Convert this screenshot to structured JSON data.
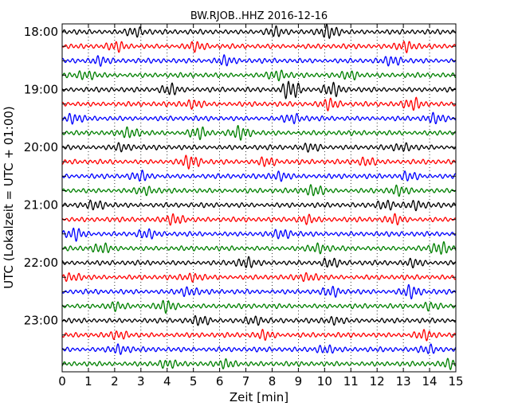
{
  "chart_data": {
    "type": "line",
    "title": "BW.RJOB..HHZ 2016-12-16",
    "xlabel": "Zeit  [min]",
    "ylabel": "UTC (Lokalzeit = UTC + 01:00)",
    "xlim": [
      0,
      15
    ],
    "x_ticks": [
      "0",
      "1",
      "2",
      "3",
      "4",
      "5",
      "6",
      "7",
      "8",
      "9",
      "10",
      "11",
      "12",
      "13",
      "14",
      "15"
    ],
    "y_tick_labels": [
      "18:00",
      "19:00",
      "20:00",
      "21:00",
      "22:00",
      "23:00"
    ],
    "grid": "vertical dotted at each minute",
    "trace_colors": [
      "#000000",
      "#ff0000",
      "#0000ff",
      "#008000"
    ],
    "series": [
      {
        "start": "18:00",
        "color": "#000000",
        "bursts": [
          [
            2.8,
            0.7
          ],
          [
            8.1,
            0.6
          ],
          [
            10.2,
            1.0
          ]
        ]
      },
      {
        "start": "18:15",
        "color": "#ff0000",
        "bursts": [
          [
            2.1,
            0.6
          ],
          [
            5.1,
            0.6
          ],
          [
            13.1,
            0.8
          ]
        ]
      },
      {
        "start": "18:30",
        "color": "#0000ff",
        "bursts": [
          [
            1.4,
            0.6
          ],
          [
            6.2,
            0.6
          ],
          [
            12.6,
            0.6
          ]
        ]
      },
      {
        "start": "18:45",
        "color": "#008000",
        "bursts": [
          [
            0.9,
            0.6
          ],
          [
            8.2,
            0.7
          ],
          [
            11.0,
            0.6
          ]
        ]
      },
      {
        "start": "19:00",
        "color": "#000000",
        "bursts": [
          [
            4.1,
            0.8
          ],
          [
            8.7,
            1.5
          ],
          [
            10.3,
            0.9
          ]
        ]
      },
      {
        "start": "19:15",
        "color": "#ff0000",
        "bursts": [
          [
            5.0,
            0.6
          ],
          [
            10.2,
            0.8
          ],
          [
            13.4,
            0.8
          ]
        ]
      },
      {
        "start": "19:30",
        "color": "#0000ff",
        "bursts": [
          [
            0.4,
            0.6
          ],
          [
            8.8,
            0.6
          ],
          [
            14.2,
            0.6
          ]
        ]
      },
      {
        "start": "19:45",
        "color": "#008000",
        "bursts": [
          [
            2.6,
            0.7
          ],
          [
            5.2,
            0.8
          ],
          [
            6.8,
            0.9
          ]
        ]
      },
      {
        "start": "20:00",
        "color": "#000000",
        "bursts": [
          [
            2.3,
            0.5
          ],
          [
            9.5,
            0.5
          ],
          [
            13.0,
            0.5
          ]
        ]
      },
      {
        "start": "20:15",
        "color": "#ff0000",
        "bursts": [
          [
            4.9,
            0.9
          ],
          [
            7.8,
            0.6
          ],
          [
            11.6,
            0.6
          ]
        ]
      },
      {
        "start": "20:30",
        "color": "#0000ff",
        "bursts": [
          [
            3.0,
            0.6
          ],
          [
            8.3,
            0.6
          ],
          [
            13.2,
            0.6
          ]
        ]
      },
      {
        "start": "20:45",
        "color": "#008000",
        "bursts": [
          [
            3.2,
            0.5
          ],
          [
            9.6,
            0.8
          ],
          [
            12.8,
            0.6
          ]
        ]
      },
      {
        "start": "21:00",
        "color": "#000000",
        "bursts": [
          [
            1.3,
            0.6
          ],
          [
            12.3,
            0.7
          ],
          [
            13.5,
            0.6
          ]
        ]
      },
      {
        "start": "21:15",
        "color": "#ff0000",
        "bursts": [
          [
            4.3,
            0.8
          ],
          [
            9.3,
            0.6
          ],
          [
            12.7,
            0.6
          ]
        ]
      },
      {
        "start": "21:30",
        "color": "#0000ff",
        "bursts": [
          [
            0.5,
            0.8
          ],
          [
            3.2,
            0.6
          ],
          [
            8.4,
            0.6
          ]
        ]
      },
      {
        "start": "21:45",
        "color": "#008000",
        "bursts": [
          [
            1.5,
            0.6
          ],
          [
            9.8,
            0.6
          ],
          [
            14.4,
            0.9
          ]
        ]
      },
      {
        "start": "22:00",
        "color": "#000000",
        "bursts": [
          [
            7.0,
            0.7
          ],
          [
            10.2,
            0.6
          ],
          [
            13.4,
            0.5
          ]
        ]
      },
      {
        "start": "22:15",
        "color": "#ff0000",
        "bursts": [
          [
            0.4,
            0.5
          ],
          [
            5.0,
            0.5
          ],
          [
            9.4,
            0.5
          ]
        ]
      },
      {
        "start": "22:30",
        "color": "#0000ff",
        "bursts": [
          [
            4.8,
            0.6
          ],
          [
            10.3,
            0.6
          ],
          [
            13.3,
            0.9
          ]
        ]
      },
      {
        "start": "22:45",
        "color": "#008000",
        "bursts": [
          [
            2.0,
            0.5
          ],
          [
            4.0,
            0.8
          ],
          [
            14.0,
            0.5
          ]
        ]
      },
      {
        "start": "23:00",
        "color": "#000000",
        "bursts": [
          [
            5.3,
            0.6
          ],
          [
            7.3,
            0.6
          ],
          [
            10.4,
            0.5
          ]
        ]
      },
      {
        "start": "23:15",
        "color": "#ff0000",
        "bursts": [
          [
            2.2,
            0.5
          ],
          [
            7.7,
            0.6
          ],
          [
            13.8,
            0.6
          ]
        ]
      },
      {
        "start": "23:30",
        "color": "#0000ff",
        "bursts": [
          [
            2.2,
            0.6
          ],
          [
            10.0,
            0.6
          ],
          [
            14.0,
            0.6
          ]
        ]
      },
      {
        "start": "23:45",
        "color": "#008000",
        "bursts": [
          [
            4.0,
            0.5
          ],
          [
            6.3,
            0.6
          ],
          [
            14.8,
            0.6
          ]
        ]
      }
    ]
  }
}
